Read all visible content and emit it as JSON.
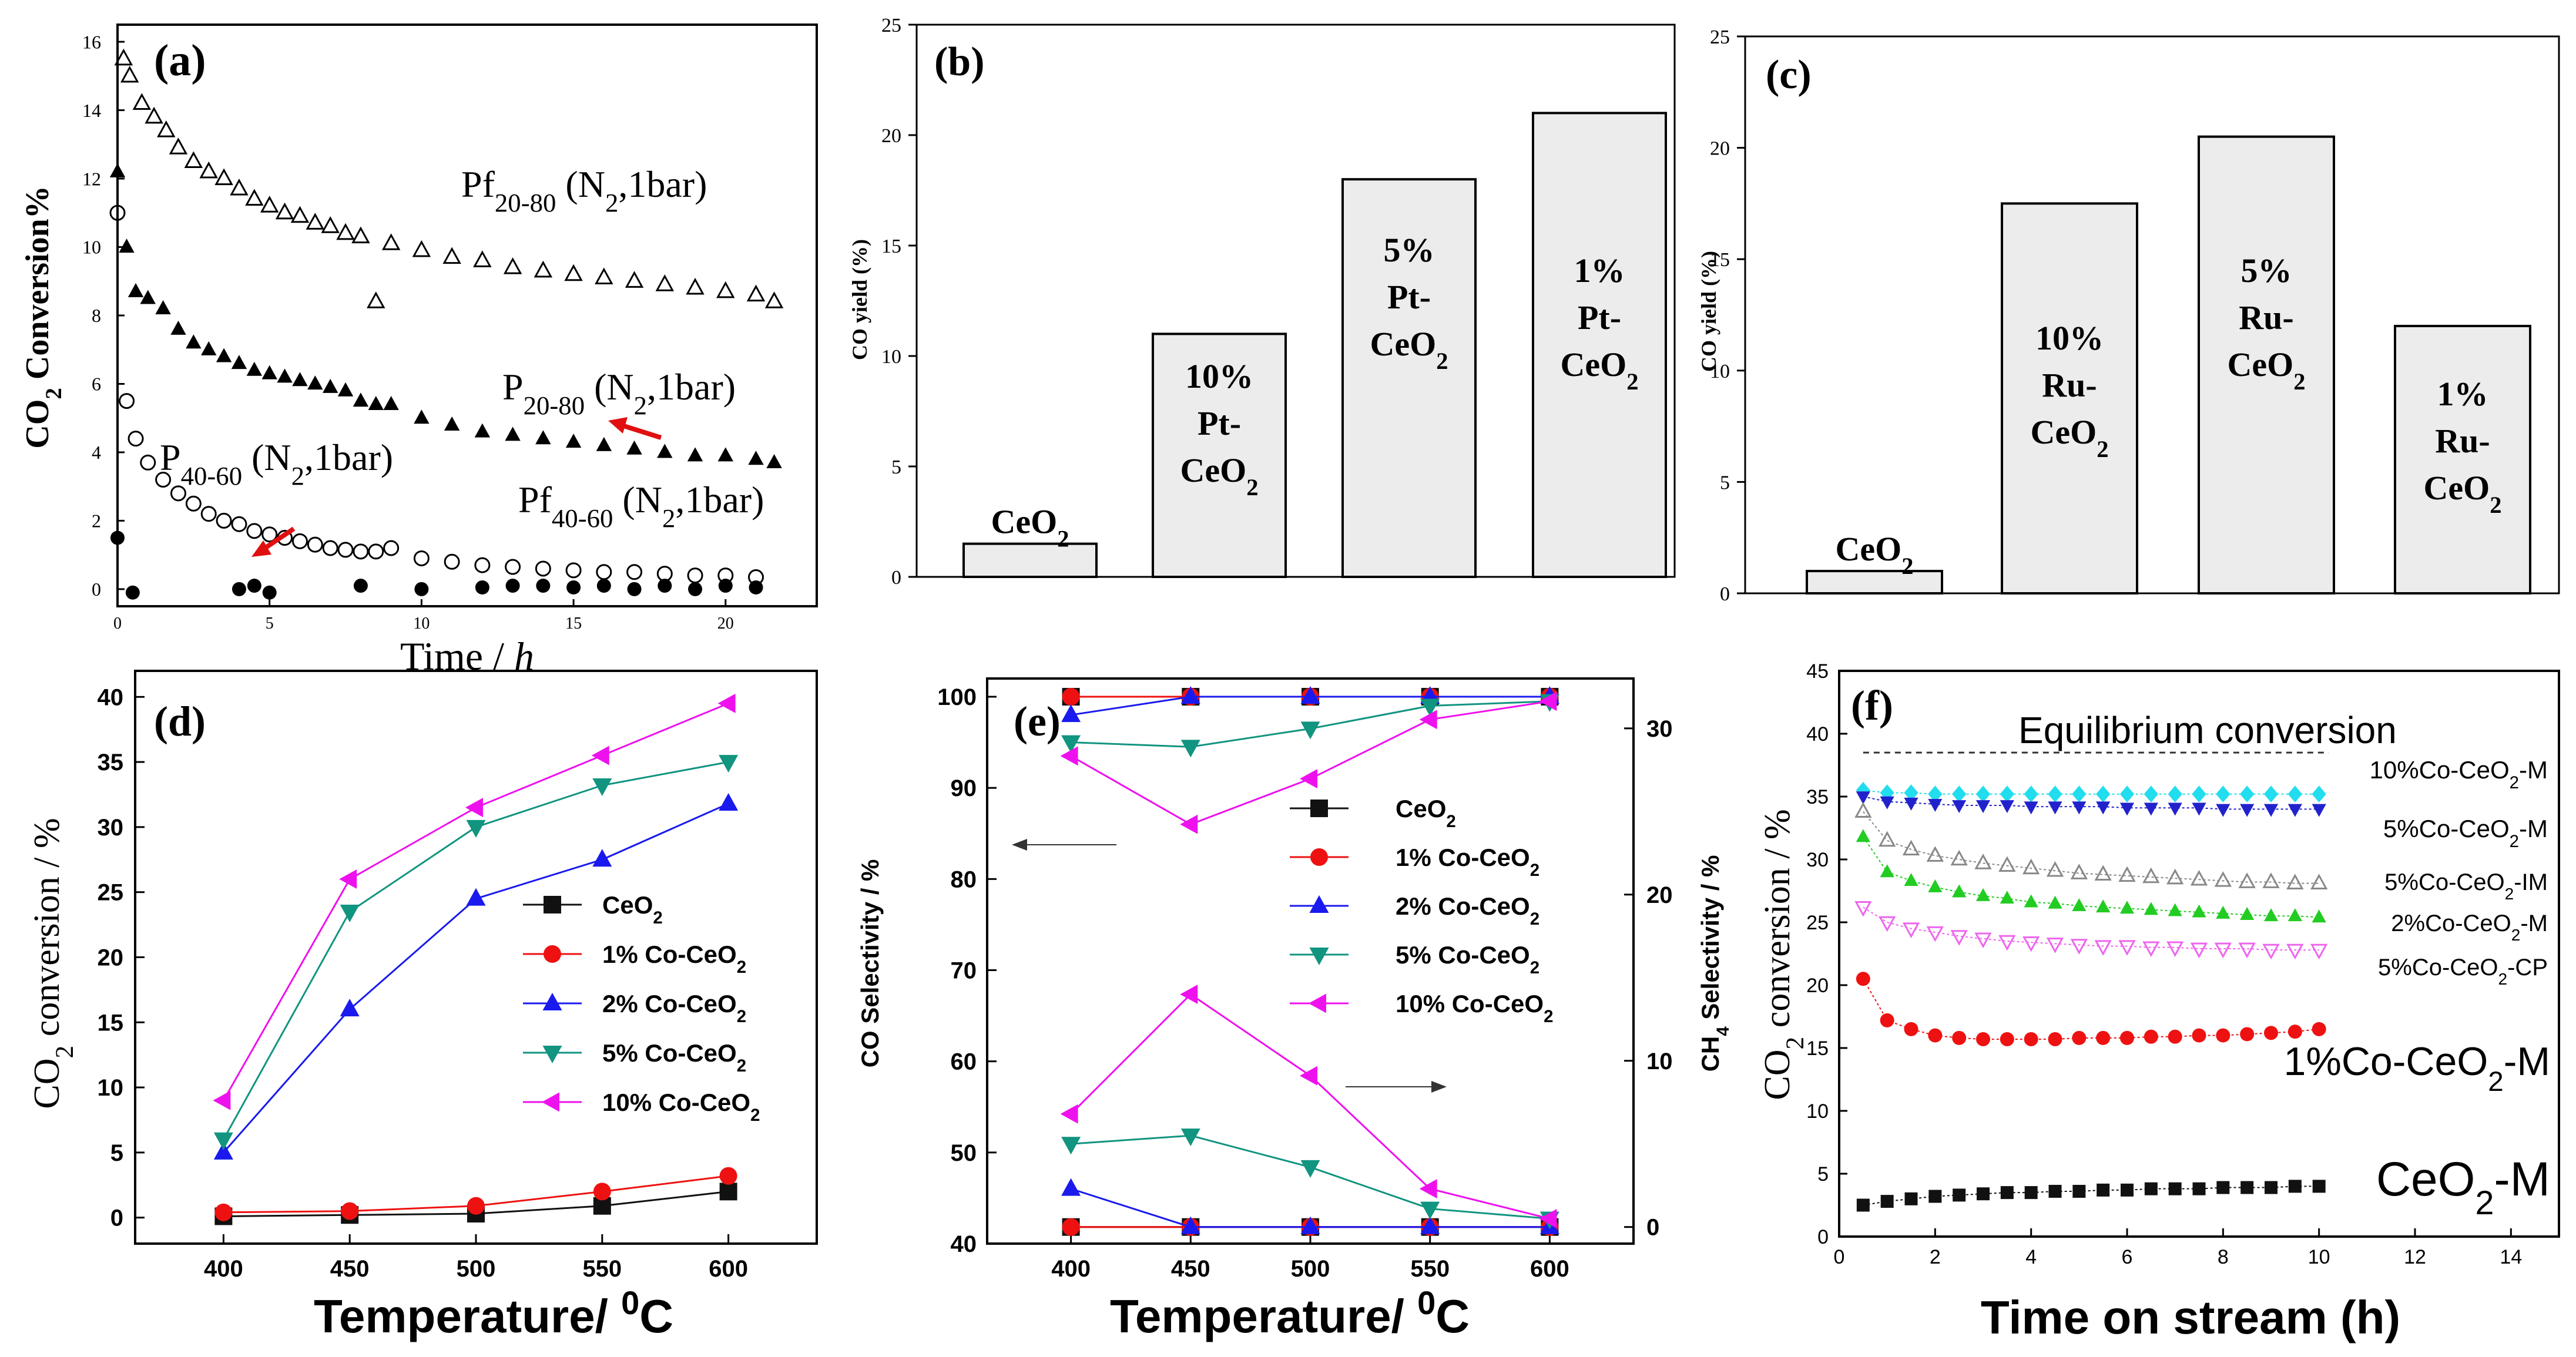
{
  "chart_data": [
    {
      "id": "a",
      "type": "scatter",
      "panel_label": "(a)",
      "xlabel": "Time / h",
      "ylabel": "CO2 Conversion%",
      "xlim": [
        0,
        23
      ],
      "ylim": [
        -0.5,
        16.5
      ],
      "xticks": [
        0,
        5,
        10,
        15,
        20
      ],
      "yticks": [
        0,
        2,
        4,
        6,
        8,
        10,
        12,
        14,
        16
      ],
      "series": [
        {
          "name": "Pf20-80 (N2,1bar)",
          "label_main": "Pf",
          "label_sub": "20-80",
          "label_tail": " (N",
          "label_sub2": "2",
          "label_end": ",1bar)",
          "marker": "triangle-open",
          "x": [
            0.2,
            0.4,
            0.8,
            1.2,
            1.6,
            2,
            2.5,
            3,
            3.5,
            4,
            4.5,
            5,
            5.5,
            6,
            6.5,
            7,
            7.5,
            8,
            8.5,
            9,
            10,
            11,
            12,
            13,
            14,
            15,
            16,
            17,
            18,
            19,
            20,
            21,
            21.6
          ],
          "y": [
            15.5,
            15,
            14.2,
            13.8,
            13.4,
            12.9,
            12.5,
            12.2,
            12,
            11.7,
            11.4,
            11.2,
            11,
            10.9,
            10.7,
            10.6,
            10.4,
            10.3,
            8.4,
            10.1,
            9.9,
            9.7,
            9.6,
            9.4,
            9.3,
            9.2,
            9.1,
            9,
            8.9,
            8.8,
            8.7,
            8.6,
            8.4
          ]
        },
        {
          "name": "P20-80 (N2,1bar)",
          "label_main": "P",
          "label_sub": "20-80",
          "label_tail": " (N",
          "label_sub2": "2",
          "label_end": ",1bar)",
          "marker": "triangle-filled",
          "x": [
            0,
            0.3,
            0.6,
            1,
            1.5,
            2,
            2.5,
            3,
            3.5,
            4,
            4.5,
            5,
            5.5,
            6,
            6.5,
            7,
            7.5,
            8,
            8.5,
            9,
            10,
            11,
            12,
            13,
            14,
            15,
            16,
            17,
            18,
            19,
            20,
            21,
            21.6
          ],
          "y": [
            12.2,
            10,
            8.7,
            8.5,
            8.2,
            7.6,
            7.2,
            7,
            6.8,
            6.6,
            6.4,
            6.3,
            6.2,
            6.1,
            6,
            5.9,
            5.8,
            5.5,
            5.4,
            5.4,
            5,
            4.8,
            4.6,
            4.5,
            4.4,
            4.3,
            4.2,
            4.1,
            4,
            3.9,
            3.9,
            3.8,
            3.7
          ]
        },
        {
          "name": "P40-60 (N2,1bar)",
          "label_main": "P",
          "label_sub": "40-60",
          "label_tail": " (N",
          "label_sub2": "2",
          "label_end": ",1bar)",
          "marker": "circle-open",
          "x": [
            0,
            0.3,
            0.6,
            1,
            1.5,
            2,
            2.5,
            3,
            3.5,
            4,
            4.5,
            5,
            5.5,
            6,
            6.5,
            7,
            7.5,
            8,
            8.5,
            9,
            10,
            11,
            12,
            13,
            14,
            15,
            16,
            17,
            18,
            19,
            20,
            21
          ],
          "y": [
            11,
            5.5,
            4.4,
            3.7,
            3.2,
            2.8,
            2.5,
            2.2,
            2,
            1.9,
            1.7,
            1.6,
            1.5,
            1.4,
            1.3,
            1.2,
            1.15,
            1.1,
            1.1,
            1.2,
            0.9,
            0.8,
            0.7,
            0.65,
            0.6,
            0.55,
            0.5,
            0.5,
            0.45,
            0.4,
            0.4,
            0.35
          ]
        },
        {
          "name": "Pf40-60 (N2,1bar)",
          "label_main": "Pf",
          "label_sub": "40-60",
          "label_tail": " (N",
          "label_sub2": "2",
          "label_end": ",1bar)",
          "marker": "circle-filled",
          "x": [
            0,
            0.5,
            4,
            4.5,
            5,
            8,
            10,
            12,
            13,
            14,
            15,
            16,
            17,
            18,
            19,
            20,
            21
          ],
          "y": [
            1.5,
            -0.1,
            0,
            0.1,
            -0.1,
            0.1,
            0,
            0.05,
            0.1,
            0.1,
            0.05,
            0.1,
            0,
            0.1,
            0,
            0.1,
            0.05
          ]
        }
      ]
    },
    {
      "id": "b",
      "type": "bar",
      "panel_label": "(b)",
      "xlabel": "",
      "ylabel": "CO yield (%)",
      "ylim": [
        0,
        25
      ],
      "yticks": [
        0,
        5,
        10,
        15,
        20,
        25
      ],
      "categories": [
        "CeO2",
        "10% Pt-CeO2",
        "5% Pt-CeO2",
        "1% Pt-CeO2"
      ],
      "values": [
        1.5,
        11,
        18,
        21
      ],
      "bar_texts": [
        [
          "CeO",
          "2"
        ],
        [
          "10%",
          "Pt-",
          "CeO",
          "2"
        ],
        [
          "5%",
          "Pt-",
          "CeO",
          "2"
        ],
        [
          "1%",
          "Pt-",
          "CeO",
          "2"
        ]
      ]
    },
    {
      "id": "c",
      "type": "bar",
      "panel_label": "(c)",
      "xlabel": "",
      "ylabel": "CO yield (%)",
      "ylim": [
        0,
        25
      ],
      "yticks": [
        0,
        5,
        10,
        15,
        20,
        25
      ],
      "categories": [
        "CeO2",
        "10% Ru-CeO2",
        "5% Ru-CeO2",
        "1% Ru-CeO2"
      ],
      "values": [
        1,
        17.5,
        20.5,
        12
      ],
      "bar_texts": [
        [
          "CeO",
          "2"
        ],
        [
          "10%",
          "Ru-",
          "CeO",
          "2"
        ],
        [
          "5%",
          "Ru-",
          "CeO",
          "2"
        ],
        [
          "1%",
          "Ru-",
          "CeO",
          "2"
        ]
      ]
    },
    {
      "id": "d",
      "type": "line",
      "panel_label": "(d)",
      "xlabel": "Temperature/ 0C",
      "ylabel": "CO2 conversion / %",
      "x": [
        400,
        450,
        500,
        550,
        600
      ],
      "xlim": [
        365,
        635
      ],
      "ylim": [
        -2,
        42
      ],
      "xticks": [
        400,
        450,
        500,
        550,
        600
      ],
      "yticks": [
        0,
        5,
        10,
        15,
        20,
        25,
        30,
        35,
        40
      ],
      "series": [
        {
          "name": "CeO2",
          "color": "#111111",
          "marker": "square",
          "values": [
            0.1,
            0.2,
            0.3,
            0.9,
            2.0
          ]
        },
        {
          "name": "1% Co-CeO2",
          "color": "#ee1111",
          "marker": "circle",
          "values": [
            0.4,
            0.5,
            0.9,
            2.0,
            3.2
          ]
        },
        {
          "name": "2% Co-CeO2",
          "color": "#1a1aee",
          "marker": "triangle-up",
          "values": [
            5.0,
            16.0,
            24.5,
            27.5,
            31.8
          ]
        },
        {
          "name": "5% Co-CeO2",
          "color": "#119480",
          "marker": "triangle-down",
          "values": [
            6.0,
            23.5,
            30.0,
            33.2,
            35.0
          ]
        },
        {
          "name": "10% Co-CeO2",
          "color": "#ee11ee",
          "marker": "triangle-left",
          "values": [
            9.0,
            26.0,
            31.5,
            35.5,
            39.5
          ]
        }
      ],
      "legend_entries": [
        [
          "CeO",
          "2"
        ],
        [
          "1% Co-CeO",
          "2"
        ],
        [
          "2% Co-CeO",
          "2"
        ],
        [
          "5% Co-CeO",
          "2"
        ],
        [
          "10% Co-CeO",
          "2"
        ]
      ]
    },
    {
      "id": "e",
      "type": "line",
      "panel_label": "(e)",
      "xlabel": "Temperature/ 0C",
      "ylabel": "CO Selectivity / %",
      "ylabel_right": "CH4 Selectivity / %",
      "x": [
        400,
        450,
        500,
        550,
        600
      ],
      "xlim": [
        365,
        635
      ],
      "ylim": [
        40,
        102
      ],
      "ylim_right": [
        -1,
        33
      ],
      "xticks": [
        400,
        450,
        500,
        550,
        600
      ],
      "yticks": [
        40,
        50,
        60,
        70,
        80,
        90,
        100
      ],
      "yticks_right": [
        0,
        10,
        20,
        30
      ],
      "series_co": [
        {
          "name": "CeO2",
          "color": "#111111",
          "marker": "square",
          "values": [
            100,
            100,
            100,
            100,
            100
          ]
        },
        {
          "name": "1% Co-CeO2",
          "color": "#ee1111",
          "marker": "circle",
          "values": [
            100,
            100,
            100,
            100,
            100
          ]
        },
        {
          "name": "2% Co-CeO2",
          "color": "#1a1aee",
          "marker": "triangle-up",
          "values": [
            98,
            100,
            100,
            100,
            100
          ]
        },
        {
          "name": "5% Co-CeO2",
          "color": "#119480",
          "marker": "triangle-down",
          "values": [
            95,
            94.5,
            96.5,
            99,
            99.5
          ]
        },
        {
          "name": "10% Co-CeO2",
          "color": "#ee11ee",
          "marker": "triangle-left",
          "values": [
            93.5,
            86,
            91,
            97.5,
            99.5
          ]
        }
      ],
      "series_ch4": [
        {
          "name": "CeO2",
          "color": "#111111",
          "marker": "square",
          "values": [
            0,
            0,
            0,
            0,
            0
          ]
        },
        {
          "name": "1% Co-CeO2",
          "color": "#ee1111",
          "marker": "circle",
          "values": [
            0,
            0,
            0,
            0,
            0
          ]
        },
        {
          "name": "2% Co-CeO2",
          "color": "#1a1aee",
          "marker": "triangle-up",
          "values": [
            2.3,
            0,
            0,
            0,
            0
          ]
        },
        {
          "name": "5% Co-CeO2",
          "color": "#119480",
          "marker": "triangle-down",
          "values": [
            5.0,
            5.5,
            3.6,
            1.1,
            0.5
          ]
        },
        {
          "name": "10% Co-CeO2",
          "color": "#ee11ee",
          "marker": "triangle-left",
          "values": [
            6.8,
            14.0,
            9.1,
            2.3,
            0.5
          ]
        }
      ],
      "legend_entries": [
        [
          "CeO",
          "2"
        ],
        [
          "1% Co-CeO",
          "2"
        ],
        [
          "2% Co-CeO",
          "2"
        ],
        [
          "5% Co-CeO",
          "2"
        ],
        [
          "10% Co-CeO",
          "2"
        ]
      ]
    },
    {
      "id": "f",
      "type": "line",
      "panel_label": "(f)",
      "xlabel": "Time on stream (h)",
      "ylabel": "CO2 conversion / %",
      "xlim": [
        0,
        15
      ],
      "ylim": [
        0,
        45
      ],
      "xticks": [
        0,
        2,
        4,
        6,
        8,
        10,
        12,
        14
      ],
      "yticks": [
        0,
        5,
        10,
        15,
        20,
        25,
        30,
        35,
        40,
        45
      ],
      "equilibrium": {
        "label": "Equilibrium conversion",
        "value": 38.5
      },
      "x": [
        0.5,
        1,
        1.5,
        2,
        2.5,
        3,
        3.5,
        4,
        4.5,
        5,
        5.5,
        6,
        6.5,
        7,
        7.5,
        8,
        8.5,
        9,
        9.5,
        10
      ],
      "series": [
        {
          "name": "10%Co-CeO2-M",
          "color": "#22ddee",
          "marker": "diamond",
          "values": [
            35.5,
            35.3,
            35.3,
            35.2,
            35.2,
            35.2,
            35.2,
            35.2,
            35.2,
            35.2,
            35.2,
            35.2,
            35.2,
            35.2,
            35.2,
            35.2,
            35.2,
            35.2,
            35.2,
            35.2
          ]
        },
        {
          "name": "5%Co-CeO2-M",
          "color": "#2222cc",
          "marker": "triangle-down",
          "values": [
            35,
            34.6,
            34.5,
            34.4,
            34.3,
            34.3,
            34.3,
            34.2,
            34.2,
            34.2,
            34.2,
            34.1,
            34.1,
            34.1,
            34.1,
            34,
            34,
            34,
            34,
            34
          ]
        },
        {
          "name": "5%Co-CeO2-IM",
          "color": "#888888",
          "marker": "triangle-open",
          "values": [
            33.8,
            31.5,
            30.8,
            30.3,
            30,
            29.7,
            29.5,
            29.3,
            29.1,
            28.9,
            28.8,
            28.7,
            28.6,
            28.5,
            28.4,
            28.3,
            28.2,
            28.2,
            28.1,
            28.1
          ]
        },
        {
          "name": "2%Co-CeO2-M",
          "color": "#22cc22",
          "marker": "triangle-up",
          "values": [
            31.8,
            29,
            28.3,
            27.8,
            27.4,
            27.1,
            26.9,
            26.6,
            26.5,
            26.3,
            26.2,
            26.1,
            26,
            25.9,
            25.8,
            25.7,
            25.6,
            25.5,
            25.5,
            25.4
          ]
        },
        {
          "name": "5%Co-CeO2-CP",
          "color": "#ee66ee",
          "marker": "triangle-down-open",
          "values": [
            26.2,
            25,
            24.5,
            24.2,
            23.9,
            23.7,
            23.5,
            23.4,
            23.3,
            23.2,
            23.1,
            23.1,
            23,
            23,
            22.9,
            22.9,
            22.9,
            22.8,
            22.8,
            22.8
          ]
        },
        {
          "name": "1%Co-CeO2-M",
          "color": "#ee1111",
          "marker": "circle",
          "values": [
            20.5,
            17.2,
            16.5,
            16,
            15.8,
            15.7,
            15.7,
            15.7,
            15.7,
            15.8,
            15.8,
            15.8,
            15.9,
            15.9,
            16,
            16,
            16.1,
            16.2,
            16.3,
            16.5
          ]
        },
        {
          "name": "CeO2-M",
          "color": "#111111",
          "marker": "square",
          "values": [
            2.5,
            2.8,
            3,
            3.2,
            3.3,
            3.4,
            3.5,
            3.5,
            3.6,
            3.6,
            3.7,
            3.7,
            3.8,
            3.8,
            3.8,
            3.9,
            3.9,
            3.9,
            4,
            4
          ]
        }
      ],
      "series_labels": [
        [
          "10%Co-CeO",
          "2",
          "-M"
        ],
        [
          "5%Co-CeO",
          "2",
          "-M"
        ],
        [
          "5%Co-CeO",
          "2",
          "-IM"
        ],
        [
          "2%Co-CeO",
          "2",
          "-M"
        ],
        [
          "5%Co-CeO",
          "2",
          "-CP"
        ],
        [
          "1%Co-CeO",
          "2",
          "-M"
        ],
        [
          "CeO",
          "2",
          "-M"
        ]
      ]
    }
  ]
}
